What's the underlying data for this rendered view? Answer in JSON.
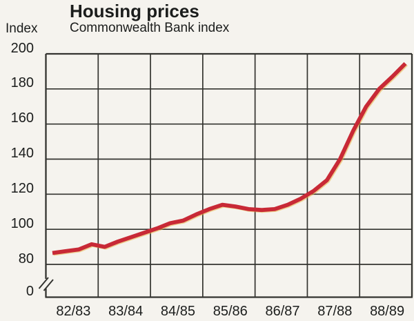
{
  "page": {
    "background_color": "#f5f3ee",
    "text_color": "#1b1d1c",
    "grid_color": "#33332f",
    "accent_color": "#c82936",
    "print_offset_color": "#e7af3f"
  },
  "header": {
    "title": "Housing prices",
    "subtitle": "Commonwealth Bank index",
    "y_axis_unit": "Index"
  },
  "chart_data": {
    "type": "line",
    "title": "Housing prices",
    "subtitle": "Commonwealth Bank index",
    "ylabel": "Index",
    "xlabel": "",
    "grid": "full",
    "legend": "none",
    "x_categories": [
      "82/83",
      "83/84",
      "84/85",
      "85/86",
      "86/87",
      "87/88",
      "88/89"
    ],
    "y_axis": {
      "ticks": [
        200,
        180,
        160,
        140,
        120,
        100,
        80
      ],
      "zero_label": "0",
      "has_axis_break": true,
      "display_range": [
        80,
        200
      ]
    },
    "series": [
      {
        "name": "Commonwealth Bank index",
        "color": "#c82936",
        "points_per_year": 4,
        "x_years": [
          0.125,
          0.375,
          0.625,
          0.875,
          1.125,
          1.375,
          1.625,
          1.875,
          2.125,
          2.375,
          2.625,
          2.875,
          3.125,
          3.375,
          3.625,
          3.875,
          4.125,
          4.375,
          4.625,
          4.875,
          5.125,
          5.375,
          5.625,
          5.875,
          6.125,
          6.375,
          6.625,
          6.875
        ],
        "values": [
          86.5,
          87.5,
          88.5,
          91.5,
          90,
          93,
          95.5,
          98,
          100.5,
          103.5,
          105,
          108.5,
          111.5,
          114,
          113,
          111.5,
          111,
          111.5,
          114,
          117.5,
          122,
          128,
          140,
          156,
          170,
          180,
          187,
          194.5
        ]
      }
    ]
  }
}
